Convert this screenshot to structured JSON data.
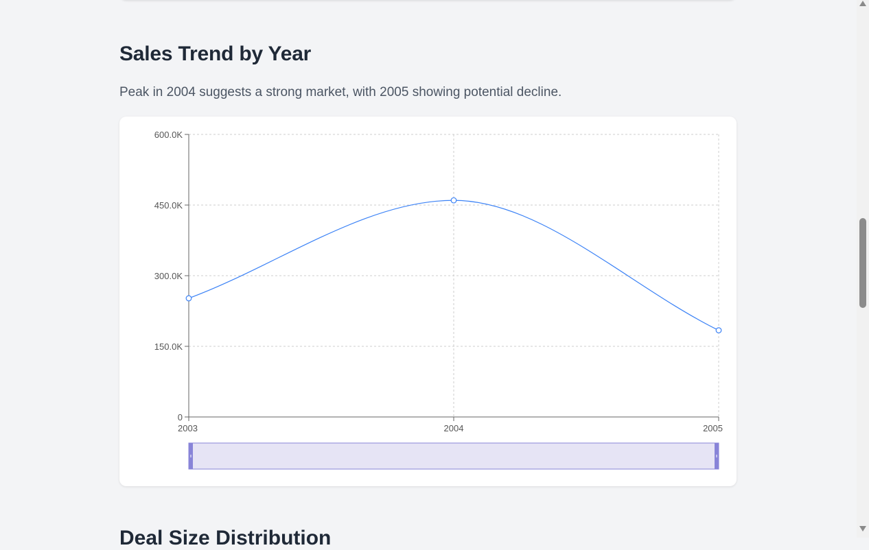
{
  "section": {
    "title": "Sales Trend by Year",
    "description": "Peak in 2004 suggests a strong market, with 2005 showing potential decline.",
    "next_title": "Deal Size Distribution"
  },
  "colors": {
    "line": "#3b82f6",
    "point_fill": "#ffffff",
    "grid": "#cccccc",
    "axis": "#666666",
    "zoom_fill": "#e6e4f5",
    "zoom_border": "#8884d8",
    "zoom_handle": "#8884d8"
  },
  "chart_data": {
    "type": "line",
    "title": "",
    "xlabel": "",
    "ylabel": "",
    "categories": [
      "2003",
      "2004",
      "2005"
    ],
    "series": [
      {
        "values": [
          252000,
          460000,
          184000
        ]
      }
    ],
    "ylim": [
      0,
      600000
    ],
    "y_ticks": [
      0,
      150000,
      300000,
      450000,
      600000
    ],
    "y_tick_labels": [
      "0",
      "150.0K",
      "300.0K",
      "450.0K",
      "600.0K"
    ],
    "grid": true,
    "curve": "smooth",
    "brush": {
      "start": "2003",
      "end": "2005"
    }
  }
}
